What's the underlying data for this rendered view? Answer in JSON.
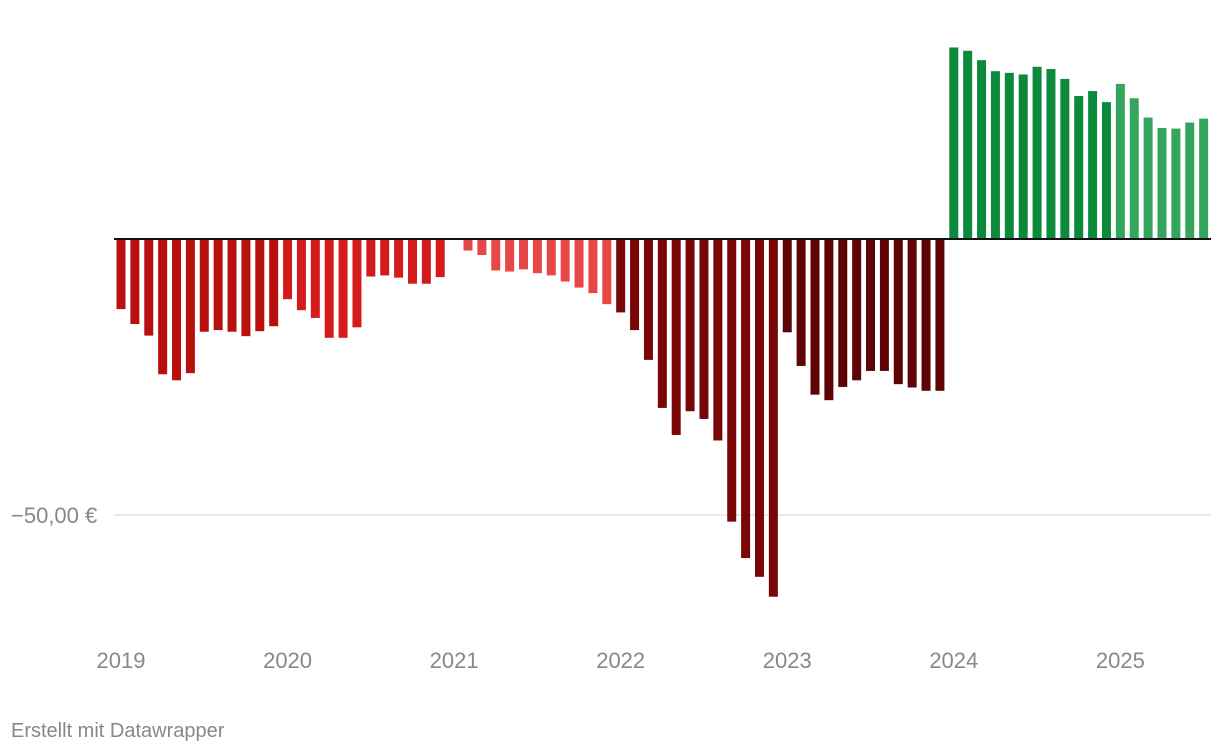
{
  "chart_data": {
    "type": "bar",
    "ylabel": "",
    "y_tick_labels": [
      {
        "value": -50,
        "label": "−50,00 €"
      }
    ],
    "x_tick_labels": [
      {
        "year": 2019,
        "label": "2019"
      },
      {
        "year": 2020,
        "label": "2020"
      },
      {
        "year": 2021,
        "label": "2021"
      },
      {
        "year": 2022,
        "label": "2022"
      },
      {
        "year": 2023,
        "label": "2023"
      },
      {
        "year": 2024,
        "label": "2024"
      },
      {
        "year": 2025,
        "label": "2025"
      }
    ],
    "ylim": [
      -65,
      35
    ],
    "start": "2019-01",
    "values": [
      -12.7,
      -15.4,
      -17.5,
      -24.5,
      -25.6,
      -24.3,
      -16.8,
      -16.5,
      -16.8,
      -17.6,
      -16.7,
      -15.8,
      -10.9,
      -12.9,
      -14.3,
      -17.9,
      -17.9,
      -16.0,
      -6.8,
      -6.6,
      -7.0,
      -8.1,
      -8.1,
      -6.9,
      null,
      -2.1,
      -2.9,
      -5.7,
      -5.9,
      -5.5,
      -6.2,
      -6.6,
      -7.7,
      -8.8,
      -9.8,
      -11.8,
      -13.3,
      -16.5,
      -21.9,
      -30.6,
      -35.5,
      -31.2,
      -32.6,
      -36.5,
      -51.2,
      -57.8,
      -61.2,
      -64.8,
      -16.9,
      -23.0,
      -28.2,
      -29.2,
      -26.8,
      -25.6,
      -23.9,
      -23.9,
      -26.3,
      -26.9,
      -27.5,
      -27.5,
      34.7,
      34.1,
      32.4,
      30.4,
      30.1,
      29.8,
      31.2,
      30.8,
      29.0,
      25.9,
      26.8,
      24.8,
      28.1,
      25.5,
      22.0,
      20.1,
      20.0,
      21.1,
      21.8
    ],
    "colors": {
      "2019": "#b80f0f",
      "2020": "#d41b1b",
      "2021": "#e84747",
      "2022": "#7a0707",
      "2023": "#5e0404",
      "2024": "#0b8a3c",
      "2025": "#34a55c",
      "zero_line": "#111111",
      "grid": "#e2e2e2"
    }
  },
  "footer": {
    "credit": "Erstellt mit Datawrapper"
  }
}
